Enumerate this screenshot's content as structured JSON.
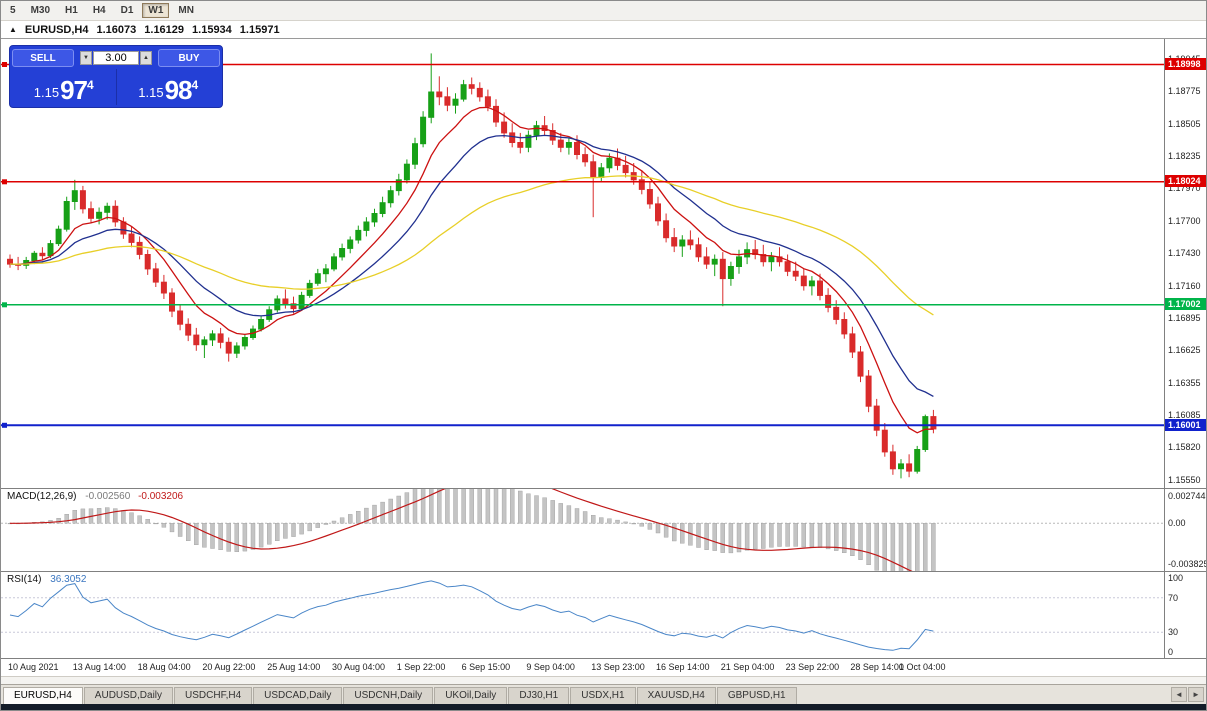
{
  "toolbar": {
    "timeframes": [
      {
        "label": "5",
        "active": false
      },
      {
        "label": "M30",
        "active": false
      },
      {
        "label": "H1",
        "active": false
      },
      {
        "label": "H4",
        "active": false
      },
      {
        "label": "D1",
        "active": false
      },
      {
        "label": "W1",
        "active": true
      },
      {
        "label": "MN",
        "active": false
      }
    ]
  },
  "ohlc": {
    "toggle": "▲",
    "symbol": "EURUSD,H4",
    "open": "1.16073",
    "high": "1.16129",
    "low": "1.15934",
    "close": "1.15971"
  },
  "trade_panel": {
    "sell_label": "SELL",
    "buy_label": "BUY",
    "lot": "3.00",
    "spin_down": "▼",
    "spin_up": "▲",
    "sell_price": {
      "big": "1.15",
      "mid": "97",
      "sup": "4"
    },
    "buy_price": {
      "big": "1.15",
      "mid": "98",
      "sup": "4"
    }
  },
  "chart_data": {
    "type": "candlestick",
    "symbol": "EURUSD",
    "timeframe": "H4",
    "title": "EURUSD,H4",
    "price_range": {
      "max": 1.1921,
      "min": 1.1548
    },
    "candle_colors": {
      "up": "#17a017",
      "down": "#d92b2b"
    },
    "candles": [
      [
        1.1738,
        1.1742,
        1.1731,
        1.1734
      ],
      [
        1.1734,
        1.174,
        1.1729,
        1.1733
      ],
      [
        1.1733,
        1.174,
        1.173,
        1.1737
      ],
      [
        1.1737,
        1.1745,
        1.1734,
        1.1743
      ],
      [
        1.1743,
        1.1748,
        1.1737,
        1.1741
      ],
      [
        1.1741,
        1.1754,
        1.1739,
        1.1751
      ],
      [
        1.1751,
        1.1766,
        1.1749,
        1.1763
      ],
      [
        1.1763,
        1.179,
        1.1761,
        1.1786
      ],
      [
        1.1786,
        1.1804,
        1.1779,
        1.1795
      ],
      [
        1.1795,
        1.1799,
        1.1776,
        1.178
      ],
      [
        1.178,
        1.1786,
        1.1768,
        1.1772
      ],
      [
        1.1772,
        1.1781,
        1.1767,
        1.1777
      ],
      [
        1.1777,
        1.1785,
        1.1771,
        1.1782
      ],
      [
        1.1782,
        1.1787,
        1.1765,
        1.1769
      ],
      [
        1.1769,
        1.1773,
        1.1755,
        1.1759
      ],
      [
        1.1759,
        1.1765,
        1.1748,
        1.1752
      ],
      [
        1.1752,
        1.1757,
        1.1738,
        1.1742
      ],
      [
        1.1742,
        1.1746,
        1.1725,
        1.173
      ],
      [
        1.173,
        1.1735,
        1.1715,
        1.1719
      ],
      [
        1.1719,
        1.1725,
        1.1705,
        1.171
      ],
      [
        1.171,
        1.1714,
        1.169,
        1.1695
      ],
      [
        1.1695,
        1.17,
        1.1679,
        1.1684
      ],
      [
        1.1684,
        1.1689,
        1.167,
        1.1675
      ],
      [
        1.1675,
        1.1681,
        1.1662,
        1.1667
      ],
      [
        1.1667,
        1.1674,
        1.1656,
        1.1671
      ],
      [
        1.1671,
        1.1679,
        1.1666,
        1.1676
      ],
      [
        1.1676,
        1.1681,
        1.1664,
        1.1669
      ],
      [
        1.1669,
        1.1673,
        1.1653,
        1.166
      ],
      [
        1.166,
        1.1669,
        1.1656,
        1.1666
      ],
      [
        1.1666,
        1.1676,
        1.1663,
        1.1673
      ],
      [
        1.1673,
        1.1683,
        1.1671,
        1.168
      ],
      [
        1.168,
        1.1691,
        1.1678,
        1.1688
      ],
      [
        1.1688,
        1.1699,
        1.1686,
        1.1696
      ],
      [
        1.1696,
        1.1708,
        1.1694,
        1.1705
      ],
      [
        1.1705,
        1.1713,
        1.1697,
        1.1701
      ],
      [
        1.1701,
        1.1707,
        1.1693,
        1.1697
      ],
      [
        1.1697,
        1.1711,
        1.1695,
        1.1708
      ],
      [
        1.1708,
        1.1721,
        1.1706,
        1.1718
      ],
      [
        1.1718,
        1.173,
        1.1716,
        1.1726
      ],
      [
        1.1726,
        1.1734,
        1.1719,
        1.173
      ],
      [
        1.173,
        1.1743,
        1.1728,
        1.174
      ],
      [
        1.174,
        1.1751,
        1.1737,
        1.1747
      ],
      [
        1.1747,
        1.1757,
        1.1743,
        1.1754
      ],
      [
        1.1754,
        1.1766,
        1.1751,
        1.1762
      ],
      [
        1.1762,
        1.1773,
        1.1757,
        1.1769
      ],
      [
        1.1769,
        1.178,
        1.1765,
        1.1776
      ],
      [
        1.1776,
        1.179,
        1.1773,
        1.1785
      ],
      [
        1.1785,
        1.1799,
        1.1781,
        1.1795
      ],
      [
        1.1795,
        1.1809,
        1.1791,
        1.1804
      ],
      [
        1.1804,
        1.1821,
        1.1801,
        1.1817
      ],
      [
        1.1817,
        1.1839,
        1.1813,
        1.1834
      ],
      [
        1.1834,
        1.1861,
        1.1831,
        1.1856
      ],
      [
        1.1856,
        1.1909,
        1.1851,
        1.1877
      ],
      [
        1.1877,
        1.189,
        1.1866,
        1.1873
      ],
      [
        1.1873,
        1.1881,
        1.1861,
        1.1866
      ],
      [
        1.1866,
        1.1876,
        1.1859,
        1.1871
      ],
      [
        1.1871,
        1.1887,
        1.1869,
        1.1883
      ],
      [
        1.1883,
        1.1889,
        1.1875,
        1.188
      ],
      [
        1.188,
        1.1885,
        1.1869,
        1.1873
      ],
      [
        1.1873,
        1.1879,
        1.1861,
        1.1865
      ],
      [
        1.1865,
        1.1871,
        1.1848,
        1.1852
      ],
      [
        1.1852,
        1.186,
        1.1839,
        1.1843
      ],
      [
        1.1843,
        1.1851,
        1.1831,
        1.1835
      ],
      [
        1.1835,
        1.1843,
        1.1826,
        1.1831
      ],
      [
        1.1831,
        1.1845,
        1.1827,
        1.1841
      ],
      [
        1.1841,
        1.1853,
        1.1837,
        1.1849
      ],
      [
        1.1849,
        1.1857,
        1.1841,
        1.1845
      ],
      [
        1.1845,
        1.1851,
        1.1833,
        1.1837
      ],
      [
        1.1837,
        1.1843,
        1.1827,
        1.1831
      ],
      [
        1.1831,
        1.1839,
        1.1825,
        1.1835
      ],
      [
        1.1835,
        1.1841,
        1.1821,
        1.1825
      ],
      [
        1.1825,
        1.1831,
        1.1815,
        1.1819
      ],
      [
        1.1819,
        1.1825,
        1.1773,
        1.1806
      ],
      [
        1.1806,
        1.1818,
        1.1802,
        1.1814
      ],
      [
        1.1814,
        1.1826,
        1.181,
        1.1822
      ],
      [
        1.1822,
        1.183,
        1.1812,
        1.1816
      ],
      [
        1.1816,
        1.1824,
        1.1806,
        1.181
      ],
      [
        1.181,
        1.1818,
        1.18,
        1.1804
      ],
      [
        1.1804,
        1.1812,
        1.1792,
        1.1796
      ],
      [
        1.1796,
        1.1802,
        1.178,
        1.1784
      ],
      [
        1.1784,
        1.179,
        1.1766,
        1.177
      ],
      [
        1.177,
        1.1776,
        1.1752,
        1.1756
      ],
      [
        1.1756,
        1.1764,
        1.1744,
        1.1749
      ],
      [
        1.1749,
        1.1758,
        1.174,
        1.1754
      ],
      [
        1.1754,
        1.1762,
        1.1746,
        1.175
      ],
      [
        1.175,
        1.1756,
        1.1736,
        1.174
      ],
      [
        1.174,
        1.1748,
        1.173,
        1.1734
      ],
      [
        1.1734,
        1.1742,
        1.1724,
        1.1738
      ],
      [
        1.1738,
        1.1744,
        1.1699,
        1.1722
      ],
      [
        1.1722,
        1.1736,
        1.1716,
        1.1732
      ],
      [
        1.1732,
        1.1746,
        1.1726,
        1.174
      ],
      [
        1.174,
        1.1752,
        1.1734,
        1.1746
      ],
      [
        1.1746,
        1.1754,
        1.1738,
        1.1742
      ],
      [
        1.1742,
        1.175,
        1.1732,
        1.1736
      ],
      [
        1.1736,
        1.1744,
        1.1728,
        1.174
      ],
      [
        1.174,
        1.1748,
        1.1732,
        1.1736
      ],
      [
        1.1736,
        1.1742,
        1.1724,
        1.1728
      ],
      [
        1.1728,
        1.1736,
        1.172,
        1.1724
      ],
      [
        1.1724,
        1.173,
        1.1712,
        1.1716
      ],
      [
        1.1716,
        1.1724,
        1.1708,
        1.172
      ],
      [
        1.172,
        1.1726,
        1.1704,
        1.1708
      ],
      [
        1.1708,
        1.1714,
        1.1694,
        1.1698
      ],
      [
        1.1698,
        1.1704,
        1.1684,
        1.1688
      ],
      [
        1.1688,
        1.1694,
        1.1672,
        1.1676
      ],
      [
        1.1676,
        1.1682,
        1.1656,
        1.1661
      ],
      [
        1.1661,
        1.1666,
        1.1636,
        1.1641
      ],
      [
        1.1641,
        1.1646,
        1.1611,
        1.1616
      ],
      [
        1.1616,
        1.1622,
        1.1591,
        1.1596
      ],
      [
        1.1596,
        1.1602,
        1.1574,
        1.1578
      ],
      [
        1.1578,
        1.1584,
        1.1559,
        1.1564
      ],
      [
        1.1564,
        1.1572,
        1.1556,
        1.1568
      ],
      [
        1.1568,
        1.1576,
        1.1557,
        1.1562
      ],
      [
        1.1562,
        1.1583,
        1.156,
        1.158
      ],
      [
        1.158,
        1.1609,
        1.1578,
        1.16073
      ],
      [
        1.16073,
        1.16129,
        1.15934,
        1.15971
      ]
    ],
    "moving_averages": [
      {
        "period": 8,
        "method": "ema",
        "color": "#cc1111"
      },
      {
        "period": 16,
        "method": "ema",
        "color": "#20308f"
      },
      {
        "period": 45,
        "method": "ema",
        "color": "#e8cf28"
      }
    ],
    "levels": [
      {
        "price": 1.18998,
        "label": "1.18998",
        "color": "#dd0000",
        "width": 1.5
      },
      {
        "price": 1.18024,
        "label": "1.18024",
        "color": "#dd0000",
        "width": 1.5
      },
      {
        "price": 1.17002,
        "label": "1.17002",
        "color": "#00b44a",
        "width": 1.5
      },
      {
        "price": 1.16001,
        "label": "1.16001",
        "color": "#1122cc",
        "width": 2
      }
    ],
    "price_axis": [
      "1.19045",
      "1.18775",
      "1.18505",
      "1.18235",
      "1.17970",
      "1.17700",
      "1.17430",
      "1.17160",
      "1.16895",
      "1.16625",
      "1.16355",
      "1.16085",
      "1.15820",
      "1.15550"
    ],
    "time_labels": [
      {
        "bar": 0,
        "text": "10 Aug 2021"
      },
      {
        "bar": 8,
        "text": "13 Aug 14:00"
      },
      {
        "bar": 16,
        "text": "18 Aug 04:00"
      },
      {
        "bar": 24,
        "text": "20 Aug 22:00"
      },
      {
        "bar": 32,
        "text": "25 Aug 14:00"
      },
      {
        "bar": 40,
        "text": "30 Aug 04:00"
      },
      {
        "bar": 48,
        "text": "1 Sep 22:00"
      },
      {
        "bar": 56,
        "text": "6 Sep 15:00"
      },
      {
        "bar": 64,
        "text": "9 Sep 04:00"
      },
      {
        "bar": 72,
        "text": "13 Sep 23:00"
      },
      {
        "bar": 80,
        "text": "16 Sep 14:00"
      },
      {
        "bar": 88,
        "text": "21 Sep 04:00"
      },
      {
        "bar": 96,
        "text": "23 Sep 22:00"
      },
      {
        "bar": 104,
        "text": "28 Sep 14:00"
      },
      {
        "bar": 110,
        "text": "1 Oct 04:00"
      }
    ],
    "indicators": {
      "macd": {
        "title": "MACD(12,26,9)",
        "value1": "-0.002560",
        "value2": "-0.003206",
        "fast": 12,
        "slow": 26,
        "signal": 9,
        "scale": [
          "0.002744",
          "0.00",
          "-0.003825"
        ],
        "scale_max": 0.002744,
        "scale_min": -0.003825,
        "hist_color": "#c4c4c4",
        "signal_color": "#c01818"
      },
      "rsi": {
        "title": "RSI(14)",
        "value": "36.3052",
        "period": 14,
        "levels": [
          70,
          30
        ],
        "scale": [
          "100",
          "70",
          "30",
          "0"
        ],
        "color": "#4a86c8"
      }
    }
  },
  "tabbar": {
    "tabs": [
      {
        "label": "EURUSD,H4",
        "active": true
      },
      {
        "label": "AUDUSD,Daily",
        "active": false
      },
      {
        "label": "USDCHF,H4",
        "active": false
      },
      {
        "label": "USDCAD,Daily",
        "active": false
      },
      {
        "label": "USDCNH,Daily",
        "active": false
      },
      {
        "label": "UKOil,Daily",
        "active": false
      },
      {
        "label": "DJ30,H1",
        "active": false
      },
      {
        "label": "USDX,H1",
        "active": false
      },
      {
        "label": "XAUUSD,H4",
        "active": false
      },
      {
        "label": "GBPUSD,H1",
        "active": false
      }
    ],
    "scroll_left": "◄",
    "scroll_right": "►"
  }
}
